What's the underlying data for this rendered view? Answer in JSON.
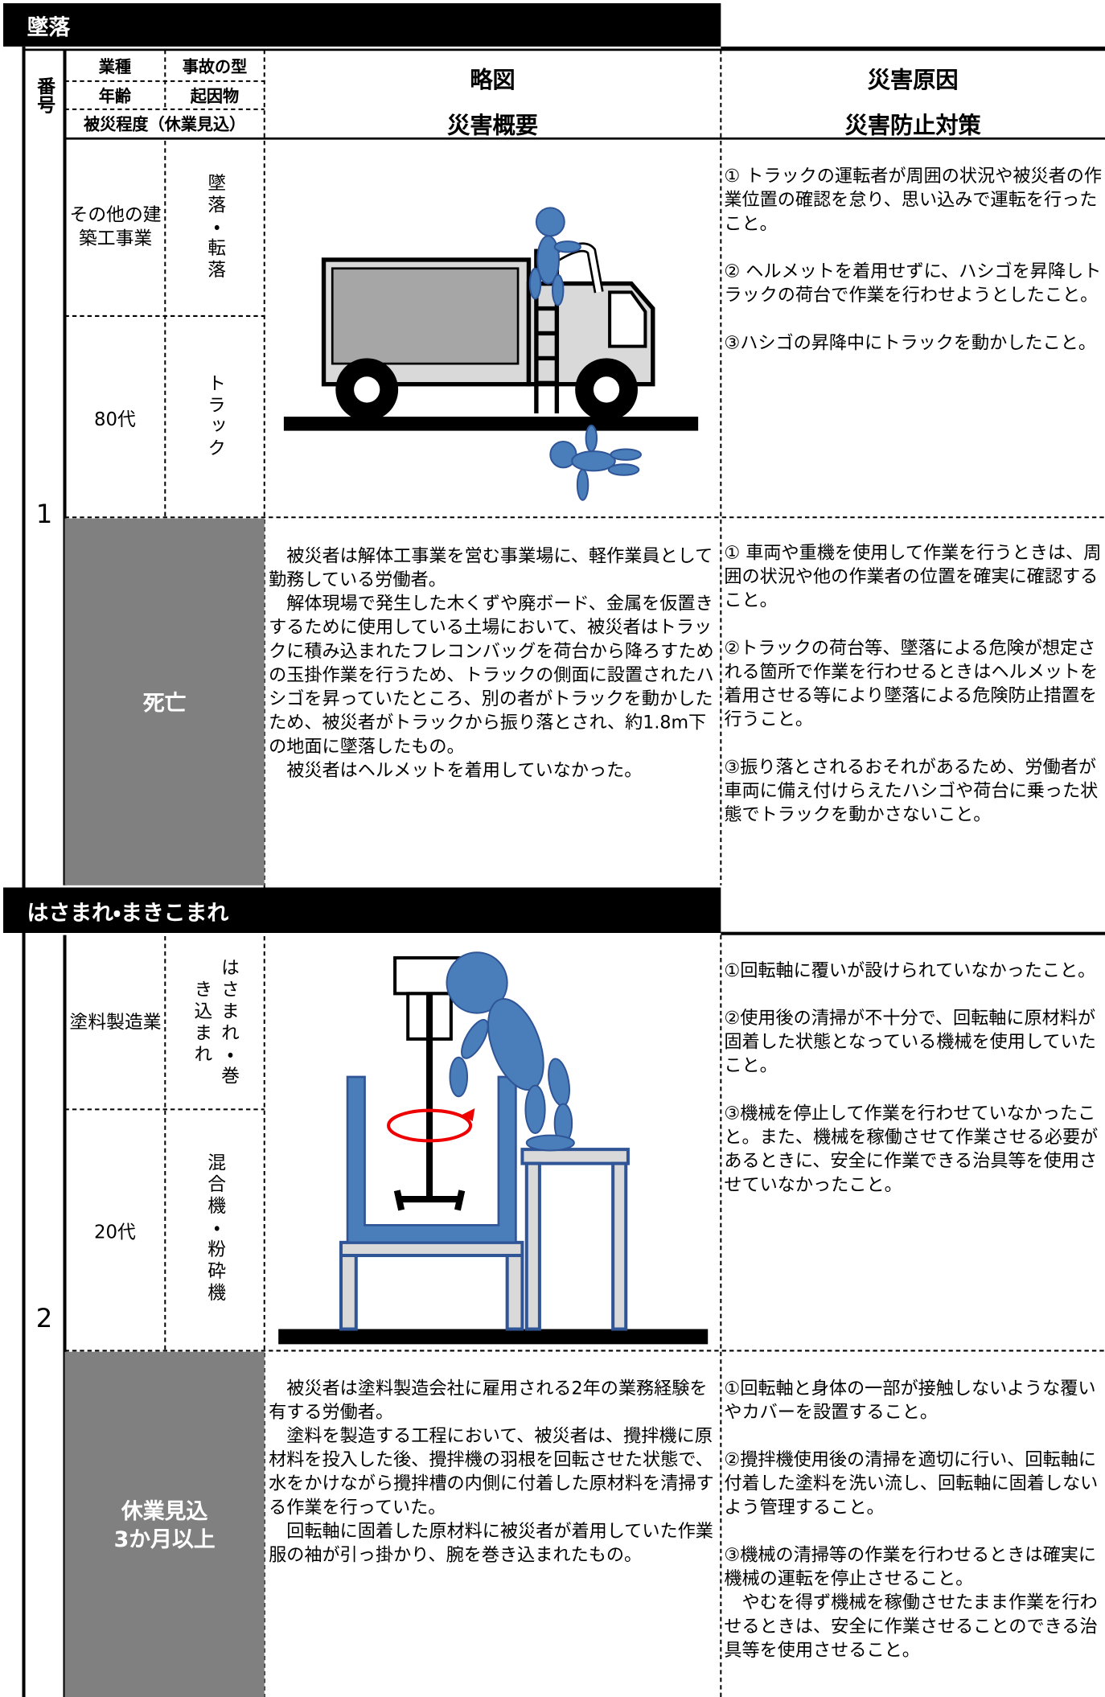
{
  "sections": [
    {
      "title": "墜落"
    },
    {
      "title": "はさまれ・まきこまれ"
    }
  ],
  "header": {
    "number": "番号",
    "industry": "業種",
    "accident_type": "事故の型",
    "age": "年齢",
    "cause_object": "起因物",
    "severity": "被災程度（休業見込）",
    "sketch": "略図",
    "summary": "災害概要",
    "cause": "災害原因",
    "prevention": "災害防止対策"
  },
  "cases": [
    {
      "number": "1",
      "industry": "その他の建築工事業",
      "accident_type": "墜落・転落",
      "age": "80代",
      "cause_object": "トラック",
      "severity": "死亡",
      "causes": [
        "① トラックの運転者が周囲の状況や被災者の作業位置の確認を怠り、思い込みで運転を行ったこと。",
        "② ヘルメットを着用せずに、ハシゴを昇降しトラックの荷台で作業を行わせようとしたこと。",
        "③ハシゴの昇降中にトラックを動かしたこと。"
      ],
      "summary": [
        "　被災者は解体工事業を営む事業場に、軽作業員として勤務している労働者。",
        "　解体現場で発生した木くずや廃ボード、金属を仮置きするために使用している土場において、被災者はトラックに積み込まれたフレコンバッグを荷台から降ろすための玉掛作業を行うため、トラックの側面に設置されたハシゴを昇っていたところ、別の者がトラックを動かしたため、被災者がトラックから振り落とされ、約1.8m下の地面に墜落したもの。",
        "　被災者はヘルメットを着用していなかった。"
      ],
      "measures": [
        "① 車両や重機を使用して作業を行うときは、周囲の状況や他の作業者の位置を確実に確認すること。",
        "②トラックの荷台等、墜落による危険が想定される箇所で作業を行わせるときはヘルメットを着用させる等により墜落による危険防止措置を行うこと。",
        "③振り落とされるおそれがあるため、労働者が車両に備え付けらえたハシゴや荷台に乗った状態でトラックを動かさないこと。"
      ]
    },
    {
      "number": "2",
      "industry": "塗料製造業",
      "accident_type": "はさまれ・巻き込まれ",
      "age": "20代",
      "cause_object": "混合機・粉砕機",
      "severity": "休業見込\n3か月以上",
      "causes": [
        "①回転軸に覆いが設けられていなかったこと。",
        "②使用後の清掃が不十分で、回転軸に原材料が固着した状態となっている機械を使用していたこと。",
        "③機械を停止して作業を行わせていなかったこと。また、機械を稼働させて作業させる必要があるときに、安全に作業できる治具等を使用させていなかったこと。"
      ],
      "summary": [
        "　被災者は塗料製造会社に雇用される2年の業務経験を有する労働者。",
        "　塗料を製造する工程において、被災者は、攪拌機に原材料を投入した後、攪拌機の羽根を回転させた状態で、水をかけながら攪拌槽の内側に付着した原材料を清掃する作業を行っていた。",
        "　回転軸に固着した原材料に被災者が着用していた作業服の袖が引っ掛かり、腕を巻き込まれたもの。"
      ],
      "measures": [
        "①回転軸と身体の一部が接触しないような覆いやカバーを設置すること。",
        "②攪拌機使用後の清掃を適切に行い、回転軸に付着した塗料を洗い流し、回転軸に固着しないよう管理すること。",
        "③機械の清掃等の作業を行わせるときは確実に機械の運転を停止させること。\n　やむを得ず機械を稼働させたまま作業を行わせるときは、安全に作業させることのできる治具等を使用させること。"
      ]
    }
  ]
}
